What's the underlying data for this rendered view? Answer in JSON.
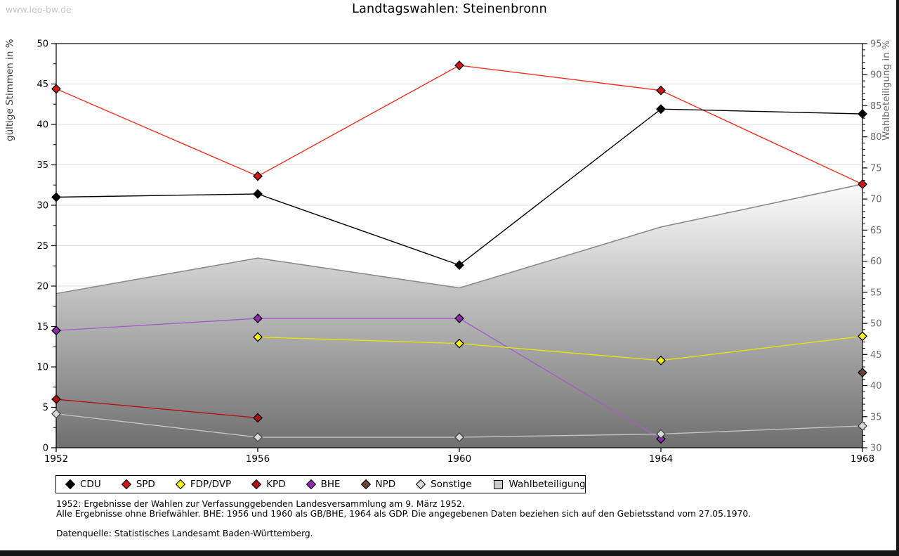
{
  "page": {
    "watermark": "www.leo-bw.de",
    "title": "Landtagswahlen: Steinenbronn"
  },
  "chart_data": {
    "type": "line",
    "title": "Landtagswahlen: Steinenbronn",
    "x_years": [
      1952,
      1956,
      1960,
      1964,
      1968
    ],
    "left_axis": {
      "label": "gültige Stimmen in %",
      "min": 0,
      "max": 50,
      "major_step": 5,
      "minor_step": 2.5
    },
    "right_axis": {
      "label": "Wahlbeteiligung in %",
      "min": 30,
      "max": 95,
      "major_step": 5,
      "minor_step": 1
    },
    "grid": true,
    "legend_position": "bottom",
    "series": [
      {
        "name": "CDU",
        "axis": "left",
        "kind": "line",
        "line_color": "#000000",
        "marker_color": "#000000",
        "marker_edge": "#000000",
        "values": [
          31.0,
          31.4,
          22.6,
          41.9,
          41.3
        ]
      },
      {
        "name": "SPD",
        "axis": "left",
        "kind": "line",
        "line_color": "#ee3224",
        "marker_color": "#d01818",
        "marker_edge": "#000000",
        "values": [
          44.4,
          33.6,
          47.3,
          44.2,
          32.6
        ]
      },
      {
        "name": "FDP/DVP",
        "axis": "left",
        "kind": "line",
        "line_color": "#e8e20a",
        "marker_color": "#f8ef18",
        "marker_edge": "#000000",
        "values": [
          null,
          13.7,
          12.9,
          10.8,
          13.8
        ]
      },
      {
        "name": "KPD",
        "axis": "left",
        "kind": "line",
        "line_color": "#b51414",
        "marker_color": "#ae0f0f",
        "marker_edge": "#000000",
        "values": [
          6.0,
          3.7,
          null,
          null,
          null
        ]
      },
      {
        "name": "BHE",
        "axis": "left",
        "kind": "line",
        "line_color": "#a45fc8",
        "marker_color": "#9128ae",
        "marker_edge": "#000000",
        "values": [
          14.5,
          16.0,
          16.0,
          1.1,
          null
        ]
      },
      {
        "name": "NPD",
        "axis": "left",
        "kind": "line",
        "line_color": "#6b4437",
        "marker_color": "#6b4437",
        "marker_edge": "#000000",
        "values": [
          null,
          null,
          null,
          null,
          9.3
        ]
      },
      {
        "name": "Sonstige",
        "axis": "left",
        "kind": "line",
        "line_color": "#c4c4c4",
        "marker_color": "#d9d9d9",
        "marker_edge": "#444444",
        "values": [
          4.2,
          1.3,
          1.3,
          1.7,
          2.7
        ]
      },
      {
        "name": "Wahlbeteiligung",
        "axis": "right",
        "kind": "area",
        "line_color": "#8c8c8c",
        "fill_top": "#fcfcfc",
        "fill_bottom": "#6f6f6f",
        "values": [
          54.8,
          60.5,
          55.7,
          65.5,
          72.4
        ]
      }
    ],
    "grid_color": "#dcdcdc",
    "right_axis_text_color": "#6e6e6e"
  },
  "legend": {
    "items": [
      {
        "label": "CDU",
        "marker": "diamond",
        "color": "#000000"
      },
      {
        "label": "SPD",
        "marker": "diamond",
        "color": "#d01818"
      },
      {
        "label": "FDP/DVP",
        "marker": "diamond",
        "color": "#f8ef18"
      },
      {
        "label": "KPD",
        "marker": "diamond",
        "color": "#ae0f0f"
      },
      {
        "label": "BHE",
        "marker": "diamond",
        "color": "#9128ae"
      },
      {
        "label": "NPD",
        "marker": "diamond",
        "color": "#6b4437"
      },
      {
        "label": "Sonstige",
        "marker": "diamond",
        "color": "#d9d9d9"
      },
      {
        "label": "Wahlbeteiligung",
        "marker": "square",
        "color": "#c9c9c9"
      }
    ]
  },
  "footnotes": {
    "line1": "1952: Ergebnisse der Wahlen zur Verfassunggebenden Landesversammlung am 9. März 1952.",
    "line2": "Alle Ergebnisse ohne Briefwähler. BHE: 1956 und 1960 als GB/BHE, 1964 als GDP. Die angegebenen Daten beziehen sich auf den Gebietsstand vom 27.05.1970.",
    "source": "Datenquelle: Statistisches Landesamt Baden-Württemberg."
  }
}
